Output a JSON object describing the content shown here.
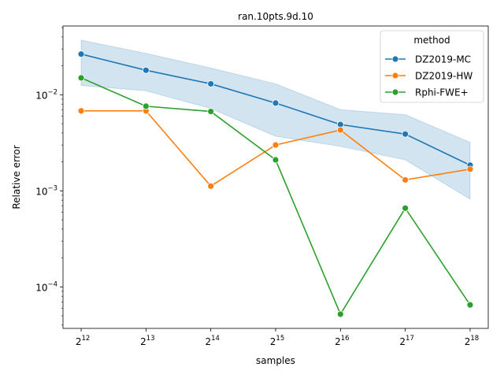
{
  "chart_data": {
    "type": "line",
    "title": "ran.10pts.9d.10",
    "xlabel": "samples",
    "ylabel": "Relative error",
    "x_scale": "log2",
    "y_scale": "log10",
    "x": [
      4096,
      8192,
      16384,
      32768,
      65536,
      131072,
      262144
    ],
    "x_tick_labels": [
      {
        "base": "2",
        "exp": "12"
      },
      {
        "base": "2",
        "exp": "13"
      },
      {
        "base": "2",
        "exp": "14"
      },
      {
        "base": "2",
        "exp": "15"
      },
      {
        "base": "2",
        "exp": "16"
      },
      {
        "base": "2",
        "exp": "17"
      },
      {
        "base": "2",
        "exp": "18"
      }
    ],
    "y_ticks": [
      {
        "value": 0.0001,
        "base": "10",
        "exp": "−4"
      },
      {
        "value": 0.001,
        "base": "10",
        "exp": "−3"
      },
      {
        "value": 0.01,
        "base": "10",
        "exp": "−2"
      }
    ],
    "ylim": [
      3.7e-05,
      0.052
    ],
    "grid": false,
    "legend": {
      "title": "method",
      "position": "top-right"
    },
    "series": [
      {
        "name": "DZ2019-MC",
        "color": "#1f77b4",
        "values": [
          0.0265,
          0.018,
          0.013,
          0.0082,
          0.0049,
          0.0039,
          0.00185
        ],
        "band_upper": [
          0.037,
          0.027,
          0.019,
          0.013,
          0.007,
          0.0062,
          0.0032
        ],
        "band_lower": [
          0.0125,
          0.011,
          0.0072,
          0.0037,
          0.0029,
          0.0021,
          0.00082
        ]
      },
      {
        "name": "DZ2019-HW",
        "color": "#ff7f0e",
        "values": [
          0.0068,
          0.0068,
          0.00112,
          0.003,
          0.0043,
          0.0013,
          0.00168
        ]
      },
      {
        "name": "Rphi-FWE+",
        "color": "#2ca02c",
        "values": [
          0.015,
          0.0076,
          0.0067,
          0.0021,
          5.2e-05,
          0.00066,
          6.5e-05
        ]
      }
    ]
  }
}
